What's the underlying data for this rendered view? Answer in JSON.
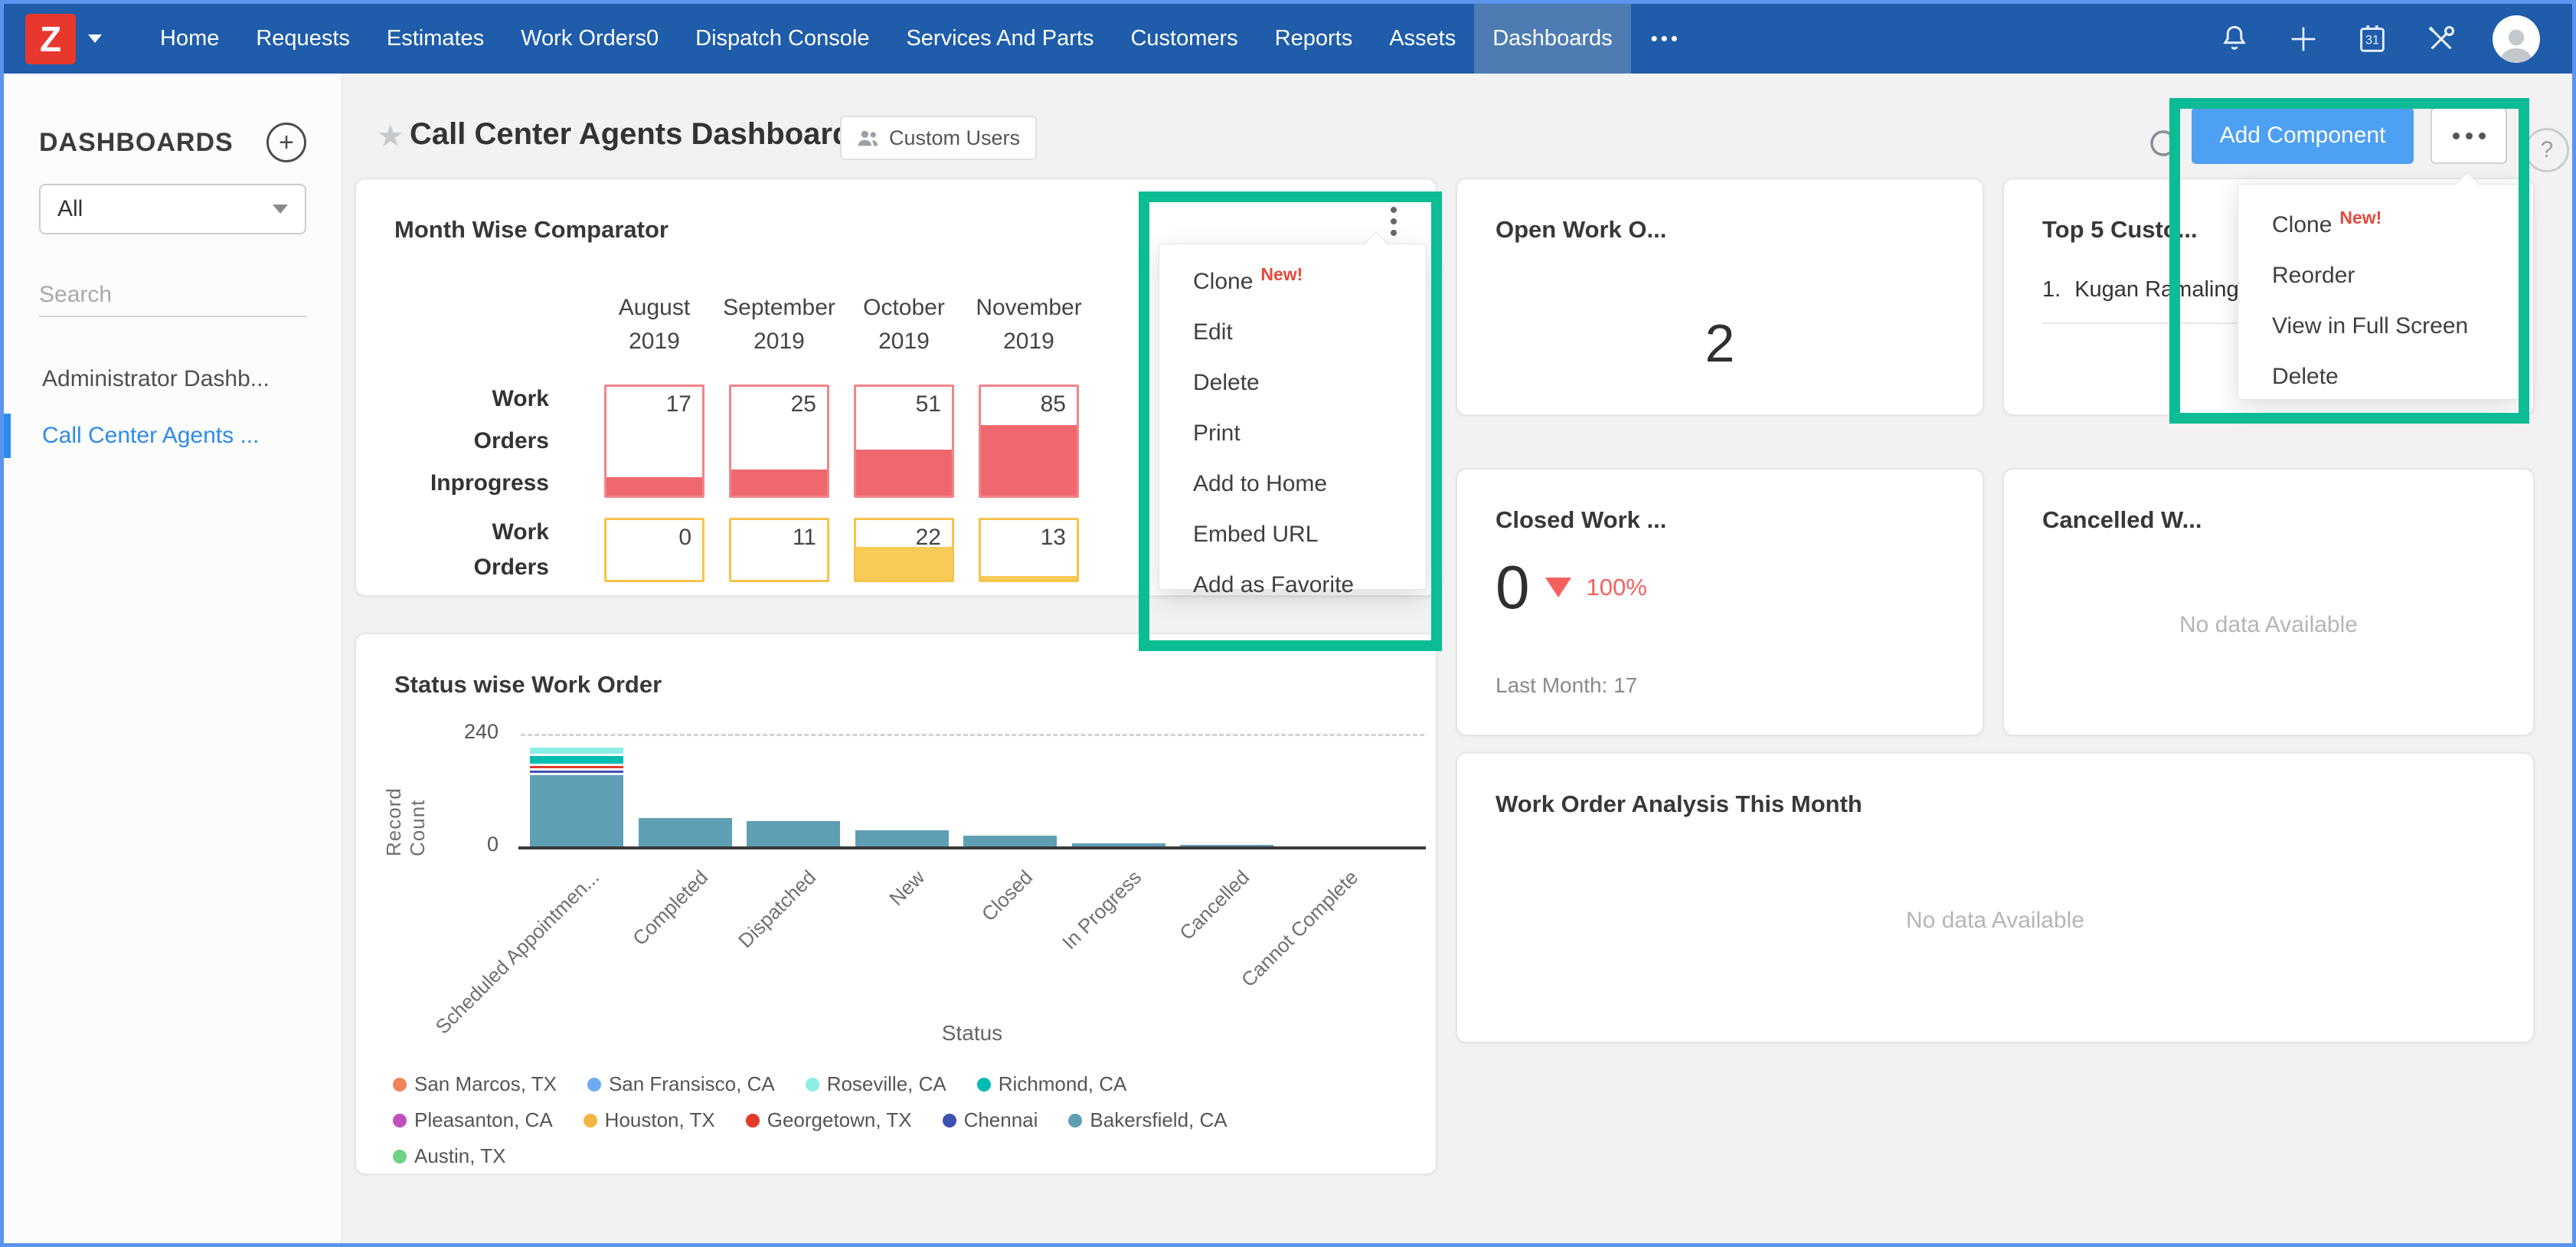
{
  "nav": {
    "logo_letter": "Z",
    "items": [
      "Home",
      "Requests",
      "Estimates",
      "Work Orders0",
      "Dispatch Console",
      "Services And Parts",
      "Customers",
      "Reports",
      "Assets",
      "Dashboards"
    ],
    "active_index": 9,
    "more_label": "•••"
  },
  "sidebar": {
    "heading": "DASHBOARDS",
    "add_label": "+",
    "filter_value": "All",
    "search_placeholder": "Search",
    "items": [
      {
        "label": "Administrator Dashb...",
        "active": false
      },
      {
        "label": "Call Center Agents ...",
        "active": true
      }
    ]
  },
  "header": {
    "title": "Call Center Agents Dashboard",
    "badge_label": "Custom Users",
    "help_label": "?"
  },
  "toolbar": {
    "add_component_label": "Add Component",
    "accent_color": "#4da0f2",
    "highlight_color": "#0cbc94"
  },
  "toolbar_menu": {
    "items": [
      {
        "label": "Clone",
        "badge": "New!"
      },
      {
        "label": "Reorder"
      },
      {
        "label": "View in Full Screen"
      },
      {
        "label": "Delete"
      }
    ]
  },
  "card_menu": {
    "items": [
      {
        "label": "Clone",
        "badge": "New!"
      },
      {
        "label": "Edit"
      },
      {
        "label": "Delete"
      },
      {
        "label": "Print"
      },
      {
        "label": "Add to Home"
      },
      {
        "label": "Embed URL"
      },
      {
        "label": "Add as Favorite"
      }
    ]
  },
  "comparator": {
    "title": "Month Wise Comparator",
    "columns": [
      [
        "August",
        "2019"
      ],
      [
        "September",
        "2019"
      ],
      [
        "October",
        "2019"
      ],
      [
        "November",
        "2019"
      ]
    ],
    "rows": [
      {
        "label_lines": [
          "Work",
          "Orders",
          "Inprogress"
        ],
        "border_color": "#f0858a",
        "fill_color": "#ee686e",
        "values": [
          17,
          25,
          51,
          85
        ],
        "fill_fractions": [
          0.17,
          0.24,
          0.42,
          0.65
        ]
      },
      {
        "label_lines": [
          "Work",
          "Orders"
        ],
        "border_color": "#f6c44a",
        "fill_color": "#f8ca57",
        "values": [
          0,
          11,
          22,
          13
        ],
        "fill_fractions": [
          0,
          0,
          0.55,
          0.07
        ]
      }
    ]
  },
  "chart_data": {
    "type": "bar",
    "stacked": true,
    "title": "Status wise Work Order",
    "xlabel": "Status",
    "ylabel": "Record Count",
    "ylim": [
      0,
      240
    ],
    "yticks": [
      "240",
      "0"
    ],
    "grid": "dashed gridline at 240 only",
    "legend_position": "bottom",
    "categories": [
      "Scheduled Appointmen...",
      "Completed",
      "Dispatched",
      "New",
      "Closed",
      "In Progress",
      "Cancelled",
      "Cannot Complete"
    ],
    "series": [
      {
        "name": "Bakersfield, CA",
        "color": "#5f9fb4",
        "values": [
          152,
          60,
          54,
          34,
          23,
          6,
          1,
          0
        ]
      },
      {
        "name": "Chennai",
        "color": "#3c51b0",
        "values": [
          5,
          0,
          0,
          0,
          0,
          0,
          0,
          0
        ]
      },
      {
        "name": "Georgetown, TX",
        "color": "#e03a2b",
        "values": [
          5,
          0,
          0,
          0,
          0,
          0,
          0,
          0
        ]
      },
      {
        "name": "Richmond, CA",
        "color": "#00bdb2",
        "values": [
          16,
          0,
          0,
          0,
          0,
          0,
          0,
          0
        ]
      },
      {
        "name": "Roseville, CA",
        "color": "#8deee6",
        "values": [
          13,
          0,
          0,
          0,
          0,
          0,
          0,
          0
        ]
      }
    ],
    "legend": [
      {
        "label": "San Marcos, TX",
        "color": "#f2825c"
      },
      {
        "label": "San Fransisco, CA",
        "color": "#70aaf5"
      },
      {
        "label": "Roseville, CA",
        "color": "#8deee6"
      },
      {
        "label": "Richmond, CA",
        "color": "#00bdb2"
      },
      {
        "label": "Pleasanton, CA",
        "color": "#c250bc"
      },
      {
        "label": "Houston, TX",
        "color": "#f3b643"
      },
      {
        "label": "Georgetown, TX",
        "color": "#e03a2b"
      },
      {
        "label": "Chennai",
        "color": "#3c51b0"
      },
      {
        "label": "Bakersfield, CA",
        "color": "#5f9fb4"
      },
      {
        "label": "Austin, TX",
        "color": "#6ed385"
      }
    ]
  },
  "cards": {
    "open_work": {
      "title": "Open Work O...",
      "value": "2"
    },
    "top_customers": {
      "title": "Top 5 Custo...",
      "rank": "1.",
      "first_item": "Kugan Ramaling"
    },
    "closed_work": {
      "title": "Closed Work ...",
      "value": "0",
      "delta_percent": "100%",
      "delta_direction": "down",
      "delta_color": "#f4605e",
      "footer": "Last Month: 17"
    },
    "cancelled_work": {
      "title": "Cancelled W...",
      "empty_text": "No data Available"
    },
    "analysis": {
      "title": "Work Order Analysis This Month",
      "empty_text": "No data Available"
    }
  }
}
